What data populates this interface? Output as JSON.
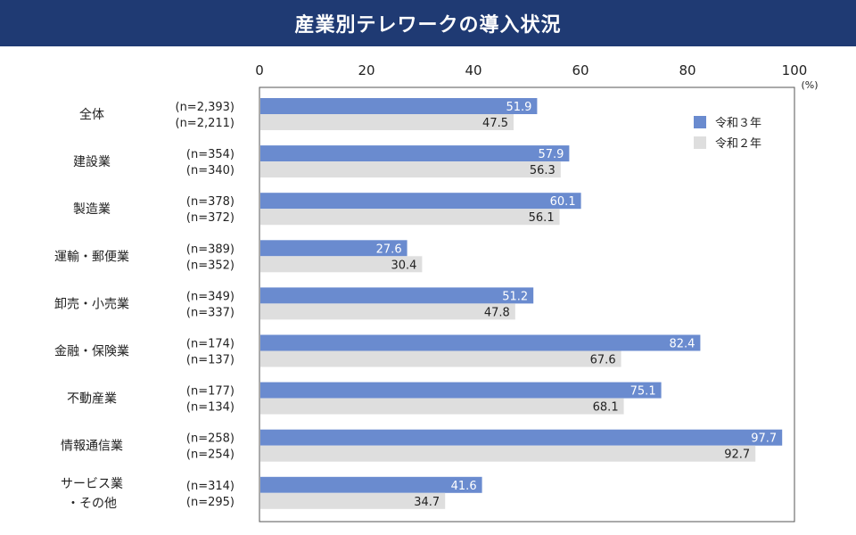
{
  "page": {
    "title": "産業別テレワークの導入状況"
  },
  "chart_data": {
    "type": "bar",
    "orientation": "horizontal",
    "title": "産業別テレワークの導入状況",
    "unit_label": "(%)",
    "xlim": [
      0,
      100
    ],
    "ticks": [
      0,
      20,
      40,
      60,
      80,
      100
    ],
    "grid": false,
    "legend_position": "top-right",
    "categories": [
      {
        "label": [
          "全体"
        ],
        "n": [
          "(n=2,393)",
          "(n=2,211)"
        ]
      },
      {
        "label": [
          "建設業"
        ],
        "n": [
          "(n=354)",
          "(n=340)"
        ]
      },
      {
        "label": [
          "製造業"
        ],
        "n": [
          "(n=378)",
          "(n=372)"
        ]
      },
      {
        "label": [
          "運輸・郵便業"
        ],
        "n": [
          "(n=389)",
          "(n=352)"
        ]
      },
      {
        "label": [
          "卸売・小売業"
        ],
        "n": [
          "(n=349)",
          "(n=337)"
        ]
      },
      {
        "label": [
          "金融・保険業"
        ],
        "n": [
          "(n=174)",
          "(n=137)"
        ]
      },
      {
        "label": [
          "不動産業"
        ],
        "n": [
          "(n=177)",
          "(n=134)"
        ]
      },
      {
        "label": [
          "情報通信業"
        ],
        "n": [
          "(n=258)",
          "(n=254)"
        ]
      },
      {
        "label": [
          "サービス業",
          "・その他"
        ],
        "n": [
          "(n=314)",
          "(n=295)"
        ]
      }
    ],
    "series": [
      {
        "name": "令和３年",
        "color": "#6a8bcf",
        "label_color": "#ffffff",
        "values": [
          51.9,
          57.9,
          60.1,
          27.6,
          51.2,
          82.4,
          75.1,
          97.7,
          41.6
        ]
      },
      {
        "name": "令和２年",
        "color": "#dedede",
        "label_color": "#222222",
        "values": [
          47.5,
          56.3,
          56.1,
          30.4,
          47.8,
          67.6,
          68.1,
          92.7,
          34.7
        ]
      }
    ]
  }
}
